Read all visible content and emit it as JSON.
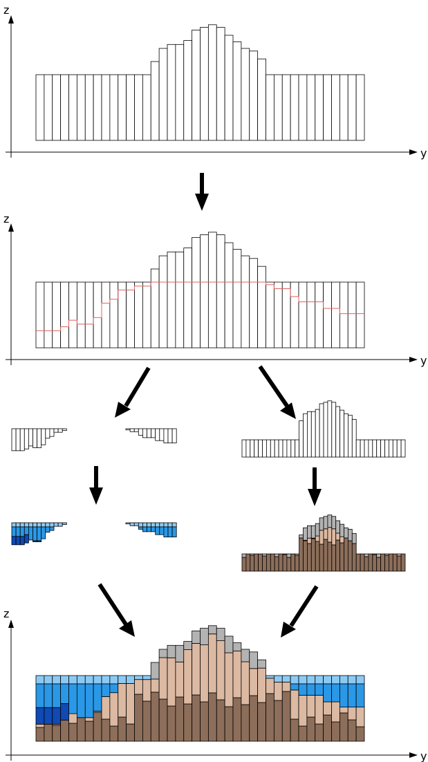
{
  "axes": {
    "z_label": "z",
    "y_label": "y"
  },
  "colors": {
    "outline": "#000000",
    "background": "#ffffff",
    "threshold_line": "#e06060",
    "water_light": "#8ccaf4",
    "water_mid": "#2a98e6",
    "water_dark": "#0f4ab5",
    "sediment_gray": "#b3b3b3",
    "sediment_tan": "#dcb9a2",
    "sediment_brown": "#8c6e5a"
  },
  "profile": {
    "columns": 40,
    "heights": [
      5,
      5,
      5,
      5,
      5,
      5,
      5,
      5,
      5,
      5,
      5,
      5,
      5,
      5,
      6,
      7,
      7.3,
      7.3,
      7.6,
      8.4,
      8.6,
      8.8,
      8.6,
      8,
      7.5,
      7,
      6.8,
      6.2,
      5,
      5,
      5,
      5,
      5,
      5,
      5,
      5,
      5,
      5,
      5,
      5
    ],
    "threshold": [
      1.3,
      1.3,
      1.3,
      1.6,
      2.1,
      1.8,
      1.8,
      2.3,
      3.4,
      3.7,
      4.4,
      4.4,
      4.7,
      4.7,
      5,
      5,
      5,
      5,
      5,
      5,
      5,
      5,
      5,
      5,
      5,
      5,
      5,
      5,
      4.8,
      4.5,
      4.5,
      3.9,
      3.5,
      3.5,
      3.5,
      3.0,
      3.0,
      2.6,
      2.6,
      2.6
    ]
  }
}
